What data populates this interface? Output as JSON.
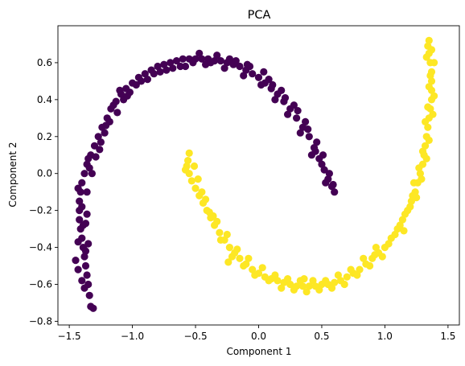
{
  "chart_data": {
    "type": "scatter",
    "title": "PCA",
    "xlabel": "Component 1",
    "ylabel": "Component 2",
    "xlim": [
      -1.59,
      1.59
    ],
    "ylim": [
      -0.82,
      0.8
    ],
    "x_ticks": [
      -1.5,
      -1.0,
      -0.5,
      0.0,
      0.5,
      1.0,
      1.5
    ],
    "x_tick_labels": [
      "−1.5",
      "−1.0",
      "−0.5",
      "0.0",
      "0.5",
      "1.0",
      "1.5"
    ],
    "y_ticks": [
      -0.8,
      -0.6,
      -0.4,
      -0.2,
      0.0,
      0.2,
      0.4,
      0.6
    ],
    "y_tick_labels": [
      "−0.8",
      "−0.6",
      "−0.4",
      "−0.2",
      "0.0",
      "0.2",
      "0.4",
      "0.6"
    ],
    "grid": false,
    "legend": "none",
    "series": [
      {
        "color": "#440154",
        "points": [
          [
            -1.31,
            -0.73
          ],
          [
            -1.33,
            -0.72
          ],
          [
            -1.34,
            -0.66
          ],
          [
            -1.35,
            -0.6
          ],
          [
            -1.36,
            -0.55
          ],
          [
            -1.37,
            -0.5
          ],
          [
            -1.38,
            -0.45
          ],
          [
            -1.39,
            -0.4
          ],
          [
            -1.4,
            -0.35
          ],
          [
            -1.41,
            -0.3
          ],
          [
            -1.42,
            -0.25
          ],
          [
            -1.42,
            -0.2
          ],
          [
            -1.42,
            -0.15
          ],
          [
            -1.41,
            -0.1
          ],
          [
            -1.45,
            -0.47
          ],
          [
            -1.43,
            -0.52
          ],
          [
            -1.4,
            -0.58
          ],
          [
            -1.38,
            -0.62
          ],
          [
            -1.37,
            -0.42
          ],
          [
            -1.39,
            -0.28
          ],
          [
            -1.36,
            -0.22
          ],
          [
            -1.43,
            -0.37
          ],
          [
            -1.4,
            -0.05
          ],
          [
            -1.38,
            0.0
          ],
          [
            -1.36,
            0.05
          ],
          [
            -1.33,
            0.1
          ],
          [
            -1.3,
            0.15
          ],
          [
            -1.27,
            0.2
          ],
          [
            -1.24,
            0.25
          ],
          [
            -1.2,
            0.3
          ],
          [
            -1.17,
            0.35
          ],
          [
            -1.13,
            0.39
          ],
          [
            -1.09,
            0.43
          ],
          [
            -1.05,
            0.46
          ],
          [
            -1.0,
            0.49
          ],
          [
            -0.95,
            0.52
          ],
          [
            -0.9,
            0.54
          ],
          [
            -0.85,
            0.56
          ],
          [
            -0.8,
            0.58
          ],
          [
            -0.75,
            0.59
          ],
          [
            -0.7,
            0.6
          ],
          [
            -0.65,
            0.61
          ],
          [
            -0.6,
            0.62
          ],
          [
            -0.55,
            0.62
          ],
          [
            -0.5,
            0.62
          ],
          [
            -0.45,
            0.62
          ],
          [
            -0.4,
            0.62
          ],
          [
            -0.35,
            0.61
          ],
          [
            -0.3,
            0.61
          ],
          [
            -0.25,
            0.6
          ],
          [
            -0.2,
            0.59
          ],
          [
            -0.15,
            0.58
          ],
          [
            -0.1,
            0.56
          ],
          [
            -0.05,
            0.54
          ],
          [
            0.0,
            0.52
          ],
          [
            0.05,
            0.49
          ],
          [
            0.1,
            0.46
          ],
          [
            0.15,
            0.43
          ],
          [
            0.2,
            0.39
          ],
          [
            0.25,
            0.35
          ],
          [
            0.3,
            0.3
          ],
          [
            0.35,
            0.25
          ],
          [
            0.4,
            0.2
          ],
          [
            0.44,
            0.14
          ],
          [
            0.48,
            0.08
          ],
          [
            0.52,
            0.02
          ],
          [
            0.55,
            -0.03
          ],
          [
            0.58,
            -0.07
          ],
          [
            0.6,
            -0.1
          ],
          [
            -1.34,
            0.03
          ],
          [
            -1.29,
            0.09
          ],
          [
            -1.26,
            0.13
          ],
          [
            -1.22,
            0.22
          ],
          [
            -1.18,
            0.28
          ],
          [
            -1.12,
            0.33
          ],
          [
            -1.07,
            0.4
          ],
          [
            -1.02,
            0.44
          ],
          [
            -0.97,
            0.48
          ],
          [
            -0.88,
            0.51
          ],
          [
            -0.78,
            0.55
          ],
          [
            -0.68,
            0.57
          ],
          [
            -0.58,
            0.58
          ],
          [
            -0.47,
            0.65
          ],
          [
            -0.42,
            0.59
          ],
          [
            -0.33,
            0.64
          ],
          [
            -0.27,
            0.57
          ],
          [
            -0.18,
            0.61
          ],
          [
            -0.12,
            0.53
          ],
          [
            -0.07,
            0.58
          ],
          [
            0.02,
            0.48
          ],
          [
            0.08,
            0.51
          ],
          [
            0.13,
            0.4
          ],
          [
            0.18,
            0.45
          ],
          [
            0.23,
            0.32
          ],
          [
            0.28,
            0.37
          ],
          [
            0.33,
            0.22
          ],
          [
            0.37,
            0.28
          ],
          [
            0.42,
            0.1
          ],
          [
            0.46,
            0.17
          ],
          [
            0.5,
            0.05
          ],
          [
            0.53,
            -0.05
          ],
          [
            0.56,
            0.0
          ],
          [
            0.59,
            -0.06
          ],
          [
            -1.35,
            -0.38
          ],
          [
            -1.37,
            -0.27
          ],
          [
            -1.4,
            -0.18
          ],
          [
            -1.43,
            -0.08
          ],
          [
            -1.36,
            -0.1
          ],
          [
            -1.32,
            0.0
          ],
          [
            -1.35,
            0.08
          ],
          [
            -1.25,
            0.17
          ],
          [
            -1.21,
            0.26
          ],
          [
            -1.15,
            0.37
          ],
          [
            -1.1,
            0.45
          ],
          [
            -1.04,
            0.42
          ],
          [
            -0.93,
            0.5
          ],
          [
            -0.83,
            0.54
          ],
          [
            -0.73,
            0.56
          ],
          [
            -0.62,
            0.58
          ],
          [
            -0.52,
            0.6
          ],
          [
            -0.38,
            0.6
          ],
          [
            -0.23,
            0.62
          ],
          [
            -0.09,
            0.59
          ],
          [
            0.04,
            0.55
          ],
          [
            0.11,
            0.48
          ],
          [
            0.21,
            0.41
          ],
          [
            0.31,
            0.34
          ],
          [
            0.39,
            0.24
          ],
          [
            0.45,
            0.12
          ],
          [
            0.51,
            0.1
          ]
        ]
      },
      {
        "color": "#fde725",
        "points": [
          [
            -0.55,
            0.11
          ],
          [
            -0.56,
            0.07
          ],
          [
            -0.57,
            0.04
          ],
          [
            -0.58,
            0.02
          ],
          [
            -0.55,
            0.0
          ],
          [
            -0.53,
            -0.04
          ],
          [
            -0.5,
            -0.08
          ],
          [
            -0.47,
            -0.12
          ],
          [
            -0.44,
            -0.16
          ],
          [
            -0.41,
            -0.2
          ],
          [
            -0.38,
            -0.24
          ],
          [
            -0.35,
            -0.28
          ],
          [
            -0.31,
            -0.32
          ],
          [
            -0.27,
            -0.36
          ],
          [
            -0.23,
            -0.4
          ],
          [
            -0.19,
            -0.43
          ],
          [
            -0.15,
            -0.46
          ],
          [
            -0.1,
            -0.49
          ],
          [
            -0.05,
            -0.52
          ],
          [
            0.0,
            -0.54
          ],
          [
            0.05,
            -0.56
          ],
          [
            0.1,
            -0.57
          ],
          [
            0.15,
            -0.58
          ],
          [
            0.2,
            -0.59
          ],
          [
            0.25,
            -0.6
          ],
          [
            0.3,
            -0.61
          ],
          [
            0.35,
            -0.61
          ],
          [
            0.4,
            -0.61
          ],
          [
            0.45,
            -0.61
          ],
          [
            0.5,
            -0.6
          ],
          [
            0.55,
            -0.6
          ],
          [
            0.6,
            -0.59
          ],
          [
            0.65,
            -0.58
          ],
          [
            0.7,
            -0.56
          ],
          [
            0.75,
            -0.54
          ],
          [
            0.8,
            -0.52
          ],
          [
            0.85,
            -0.49
          ],
          [
            0.9,
            -0.46
          ],
          [
            0.95,
            -0.43
          ],
          [
            1.0,
            -0.4
          ],
          [
            1.05,
            -0.35
          ],
          [
            1.1,
            -0.3
          ],
          [
            1.14,
            -0.25
          ],
          [
            1.18,
            -0.2
          ],
          [
            1.21,
            -0.15
          ],
          [
            1.24,
            -0.1
          ],
          [
            1.26,
            -0.05
          ],
          [
            1.28,
            0.0
          ],
          [
            1.3,
            0.05
          ],
          [
            1.31,
            0.1
          ],
          [
            1.32,
            0.15
          ],
          [
            1.33,
            0.2
          ],
          [
            1.34,
            0.25
          ],
          [
            1.35,
            0.3
          ],
          [
            1.36,
            0.35
          ],
          [
            1.37,
            0.4
          ],
          [
            1.37,
            0.45
          ],
          [
            1.37,
            0.5
          ],
          [
            1.37,
            0.55
          ],
          [
            1.36,
            0.6
          ],
          [
            1.35,
            0.65
          ],
          [
            1.34,
            0.69
          ],
          [
            1.35,
            0.72
          ],
          [
            -0.51,
            0.04
          ],
          [
            -0.48,
            -0.03
          ],
          [
            -0.45,
            -0.1
          ],
          [
            -0.42,
            -0.14
          ],
          [
            -0.39,
            -0.21
          ],
          [
            -0.36,
            -0.23
          ],
          [
            -0.33,
            -0.26
          ],
          [
            -0.3,
            -0.36
          ],
          [
            -0.25,
            -0.33
          ],
          [
            -0.21,
            -0.45
          ],
          [
            -0.17,
            -0.41
          ],
          [
            -0.12,
            -0.5
          ],
          [
            -0.08,
            -0.46
          ],
          [
            -0.03,
            -0.55
          ],
          [
            0.03,
            -0.51
          ],
          [
            0.08,
            -0.58
          ],
          [
            0.13,
            -0.55
          ],
          [
            0.18,
            -0.62
          ],
          [
            0.23,
            -0.57
          ],
          [
            0.28,
            -0.63
          ],
          [
            0.33,
            -0.58
          ],
          [
            0.38,
            -0.64
          ],
          [
            0.43,
            -0.58
          ],
          [
            0.48,
            -0.63
          ],
          [
            0.53,
            -0.58
          ],
          [
            0.58,
            -0.62
          ],
          [
            0.63,
            -0.55
          ],
          [
            0.68,
            -0.6
          ],
          [
            0.73,
            -0.52
          ],
          [
            0.78,
            -0.55
          ],
          [
            0.83,
            -0.46
          ],
          [
            0.88,
            -0.5
          ],
          [
            0.93,
            -0.4
          ],
          [
            0.98,
            -0.45
          ],
          [
            1.03,
            -0.38
          ],
          [
            1.08,
            -0.33
          ],
          [
            1.12,
            -0.28
          ],
          [
            1.16,
            -0.22
          ],
          [
            1.2,
            -0.18
          ],
          [
            1.23,
            -0.05
          ],
          [
            1.25,
            -0.13
          ],
          [
            1.27,
            0.03
          ],
          [
            1.29,
            -0.03
          ],
          [
            1.3,
            0.12
          ],
          [
            1.33,
            0.08
          ],
          [
            1.32,
            0.28
          ],
          [
            1.35,
            0.18
          ],
          [
            1.34,
            0.36
          ],
          [
            1.38,
            0.32
          ],
          [
            1.35,
            0.47
          ],
          [
            1.39,
            0.42
          ],
          [
            1.36,
            0.53
          ],
          [
            1.39,
            0.6
          ],
          [
            1.33,
            0.63
          ],
          [
            1.37,
            0.67
          ],
          [
            -0.24,
            -0.48
          ],
          [
            0.36,
            -0.57
          ],
          [
            1.15,
            -0.31
          ],
          [
            0.92,
            -0.44
          ],
          [
            1.22,
            -0.12
          ]
        ]
      }
    ]
  }
}
